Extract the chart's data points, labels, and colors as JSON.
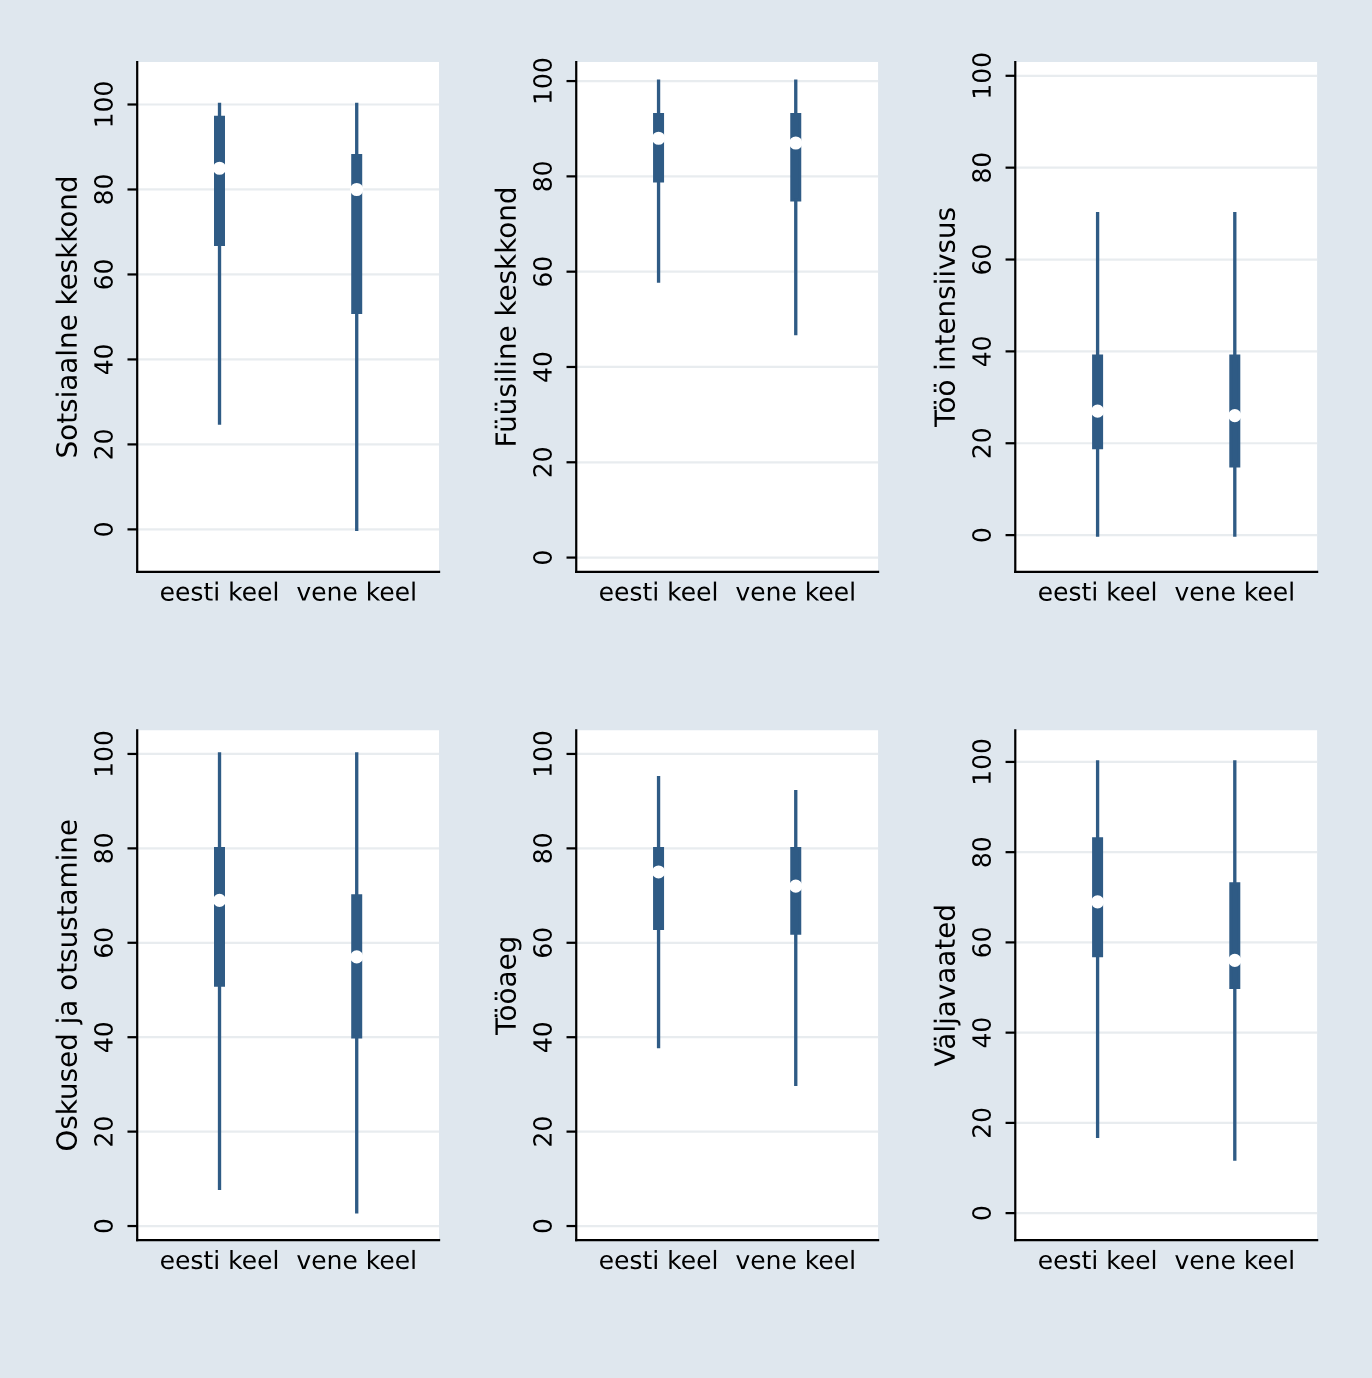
{
  "chart_data": [
    {
      "type": "box",
      "ylabel": "Sotsiaalne keskkond",
      "categories": [
        "eesti keel",
        "vene keel"
      ],
      "boxes": [
        {
          "low": 25,
          "q1": 67,
          "median": 85,
          "q3": 97,
          "high": 100
        },
        {
          "low": 0,
          "q1": 51,
          "median": 80,
          "q3": 88,
          "high": 100
        }
      ],
      "color": "#2f5b85",
      "ylim": [
        -10,
        110
      ],
      "yticks": [
        0,
        20,
        40,
        60,
        80,
        100
      ],
      "grid": "y"
    },
    {
      "type": "box",
      "ylabel": "Füüsiline keskkond",
      "categories": [
        "eesti keel",
        "vene keel"
      ],
      "boxes": [
        {
          "low": 58,
          "q1": 79,
          "median": 88,
          "q3": 93,
          "high": 100
        },
        {
          "low": 47,
          "q1": 75,
          "median": 87,
          "q3": 93,
          "high": 100
        }
      ],
      "color": "#2f5b85",
      "ylim": [
        -3,
        104
      ],
      "yticks": [
        0,
        20,
        40,
        60,
        80,
        100
      ],
      "grid": "y"
    },
    {
      "type": "box",
      "ylabel": "Töö intensiivsus",
      "categories": [
        "eesti keel",
        "vene keel"
      ],
      "boxes": [
        {
          "low": 0,
          "q1": 19,
          "median": 27,
          "q3": 39,
          "high": 70
        },
        {
          "low": 0,
          "q1": 15,
          "median": 26,
          "q3": 39,
          "high": 70
        }
      ],
      "color": "#2f5b85",
      "ylim": [
        -8,
        103
      ],
      "yticks": [
        0,
        20,
        40,
        60,
        80,
        100
      ],
      "grid": "y"
    },
    {
      "type": "box",
      "ylabel": "Oskused ja otsustamine",
      "categories": [
        "eesti keel",
        "vene keel"
      ],
      "boxes": [
        {
          "low": 8,
          "q1": 51,
          "median": 69,
          "q3": 80,
          "high": 100
        },
        {
          "low": 3,
          "q1": 40,
          "median": 57,
          "q3": 70,
          "high": 100
        }
      ],
      "color": "#2f5b85",
      "ylim": [
        -3,
        105
      ],
      "yticks": [
        0,
        20,
        40,
        60,
        80,
        100
      ],
      "grid": "y"
    },
    {
      "type": "box",
      "ylabel": "Tööaeg",
      "categories": [
        "eesti keel",
        "vene keel"
      ],
      "boxes": [
        {
          "low": 38,
          "q1": 63,
          "median": 75,
          "q3": 80,
          "high": 95
        },
        {
          "low": 30,
          "q1": 62,
          "median": 72,
          "q3": 80,
          "high": 92
        }
      ],
      "color": "#2f5b85",
      "ylim": [
        -3,
        105
      ],
      "yticks": [
        0,
        20,
        40,
        60,
        80,
        100
      ],
      "grid": "y"
    },
    {
      "type": "box",
      "ylabel": "Väljavaated",
      "categories": [
        "eesti keel",
        "vene keel"
      ],
      "boxes": [
        {
          "low": 17,
          "q1": 57,
          "median": 69,
          "q3": 83,
          "high": 100
        },
        {
          "low": 12,
          "q1": 50,
          "median": 56,
          "q3": 73,
          "high": 100
        }
      ],
      "color": "#2f5b85",
      "ylim": [
        -6,
        107
      ],
      "yticks": [
        0,
        20,
        40,
        60,
        80,
        100
      ],
      "grid": "y"
    }
  ]
}
